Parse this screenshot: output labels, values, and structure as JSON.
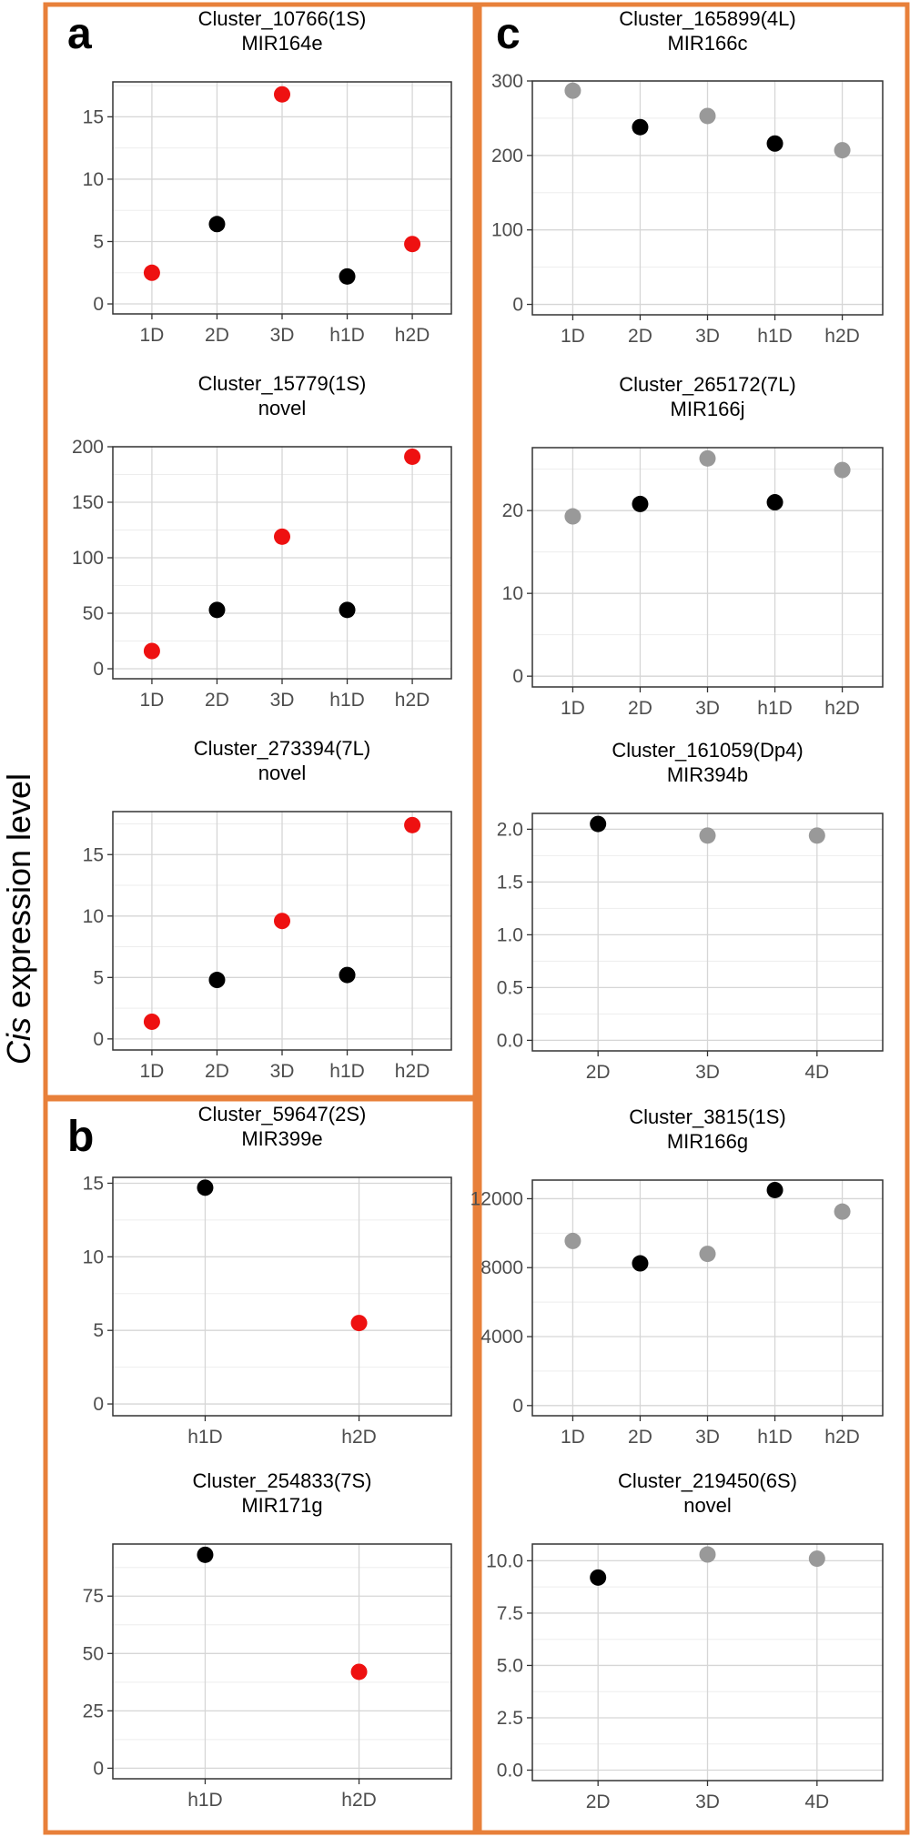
{
  "y_axis_label_italic": "Cis",
  "y_axis_label_rest": " expression level",
  "colors": {
    "frame": "#E8803A",
    "red": "#EE1111",
    "black": "#000000",
    "grey": "#999999",
    "grid_major": "#D6D6D6",
    "grid_minor": "#EDEDED"
  },
  "panels": [
    {
      "label": "a"
    },
    {
      "label": "b"
    },
    {
      "label": "c"
    }
  ],
  "chart_data": [
    {
      "type": "scatter",
      "panel": "a",
      "title": "Cluster_10766(1S)",
      "subtitle": "MIR164e",
      "categories": [
        "1D",
        "2D",
        "3D",
        "h1D",
        "h2D"
      ],
      "values": [
        2.5,
        6.4,
        16.8,
        2.2,
        4.8
      ],
      "point_colors": [
        "red",
        "black",
        "red",
        "black",
        "red"
      ],
      "ylim": [
        -0.8,
        17.8
      ],
      "yticks": [
        0,
        5,
        10,
        15
      ],
      "yticklabels": [
        "0",
        "5",
        "10",
        "15"
      ]
    },
    {
      "type": "scatter",
      "panel": "a",
      "title": "Cluster_15779(1S)",
      "subtitle": "novel",
      "categories": [
        "1D",
        "2D",
        "3D",
        "h1D",
        "h2D"
      ],
      "values": [
        16,
        53,
        119,
        53,
        191
      ],
      "point_colors": [
        "red",
        "black",
        "red",
        "black",
        "red"
      ],
      "ylim": [
        -9,
        200
      ],
      "yticks": [
        0,
        50,
        100,
        150,
        200
      ],
      "yticklabels": [
        "0",
        "50",
        "100",
        "150",
        "200"
      ]
    },
    {
      "type": "scatter",
      "panel": "a",
      "title": "Cluster_273394(7L)",
      "subtitle": "novel",
      "categories": [
        "1D",
        "2D",
        "3D",
        "h1D",
        "h2D"
      ],
      "values": [
        1.4,
        4.8,
        9.6,
        5.2,
        17.4
      ],
      "point_colors": [
        "red",
        "black",
        "red",
        "black",
        "red"
      ],
      "ylim": [
        -0.9,
        18.5
      ],
      "yticks": [
        0,
        5,
        10,
        15
      ],
      "yticklabels": [
        "0",
        "5",
        "10",
        "15"
      ]
    },
    {
      "type": "scatter",
      "panel": "b",
      "title": "Cluster_59647(2S)",
      "subtitle": "MIR399e",
      "categories": [
        "h1D",
        "h2D"
      ],
      "values": [
        14.7,
        5.5
      ],
      "point_colors": [
        "black",
        "red"
      ],
      "ylim": [
        -0.8,
        15.4
      ],
      "yticks": [
        0,
        5,
        10,
        15
      ],
      "yticklabels": [
        "0",
        "5",
        "10",
        "15"
      ]
    },
    {
      "type": "scatter",
      "panel": "b",
      "title": "Cluster_254833(7S)",
      "subtitle": "MIR171g",
      "categories": [
        "h1D",
        "h2D"
      ],
      "values": [
        93,
        42
      ],
      "point_colors": [
        "black",
        "red"
      ],
      "ylim": [
        -4.6,
        97.7
      ],
      "yticks": [
        0,
        25,
        50,
        75
      ],
      "yticklabels": [
        "0",
        "25",
        "50",
        "75"
      ]
    },
    {
      "type": "scatter",
      "panel": "c",
      "title": "Cluster_165899(4L)",
      "subtitle": "MIR166c",
      "categories": [
        "1D",
        "2D",
        "3D",
        "h1D",
        "h2D"
      ],
      "values": [
        287,
        238,
        253,
        216,
        207
      ],
      "point_colors": [
        "grey",
        "black",
        "grey",
        "black",
        "grey"
      ],
      "ylim": [
        -14,
        300
      ],
      "yticks": [
        0,
        100,
        200,
        300
      ],
      "yticklabels": [
        "0",
        "100",
        "200",
        "300"
      ]
    },
    {
      "type": "scatter",
      "panel": "c",
      "title": "Cluster_265172(7L)",
      "subtitle": "MIR166j",
      "categories": [
        "1D",
        "2D",
        "3D",
        "h1D",
        "h2D"
      ],
      "values": [
        19.3,
        20.8,
        26.3,
        21.0,
        24.9
      ],
      "point_colors": [
        "grey",
        "black",
        "grey",
        "black",
        "grey"
      ],
      "ylim": [
        -1.3,
        27.6
      ],
      "yticks": [
        0,
        10,
        20
      ],
      "yticklabels": [
        "0",
        "10",
        "20"
      ]
    },
    {
      "type": "scatter",
      "panel": "c",
      "title": "Cluster_161059(Dp4)",
      "subtitle": "MIR394b",
      "categories": [
        "2D",
        "3D",
        "4D"
      ],
      "values": [
        2.05,
        1.94,
        1.94
      ],
      "point_colors": [
        "black",
        "grey",
        "grey"
      ],
      "ylim": [
        -0.1,
        2.15
      ],
      "yticks": [
        0,
        0.5,
        1.0,
        1.5,
        2.0
      ],
      "yticklabels": [
        "0.0",
        "0.5",
        "1.0",
        "1.5",
        "2.0"
      ]
    },
    {
      "type": "scatter",
      "panel": "c",
      "title": "Cluster_3815(1S)",
      "subtitle": "MIR166g",
      "categories": [
        "1D",
        "2D",
        "3D",
        "h1D",
        "h2D"
      ],
      "values": [
        9550,
        8250,
        8800,
        12500,
        11250
      ],
      "point_colors": [
        "grey",
        "black",
        "grey",
        "black",
        "grey"
      ],
      "ylim": [
        -590,
        13080
      ],
      "yticks": [
        0,
        4000,
        8000,
        12000
      ],
      "yticklabels": [
        "0",
        "4000",
        "8000",
        "12000"
      ]
    },
    {
      "type": "scatter",
      "panel": "c",
      "title": "Cluster_219450(6S)",
      "subtitle": "novel",
      "categories": [
        "2D",
        "3D",
        "4D"
      ],
      "values": [
        9.2,
        10.3,
        10.1
      ],
      "point_colors": [
        "black",
        "grey",
        "grey"
      ],
      "ylim": [
        -0.5,
        10.8
      ],
      "yticks": [
        0,
        2.5,
        5.0,
        7.5,
        10.0
      ],
      "yticklabels": [
        "0.0",
        "2.5",
        "5.0",
        "7.5",
        "10.0"
      ]
    }
  ]
}
